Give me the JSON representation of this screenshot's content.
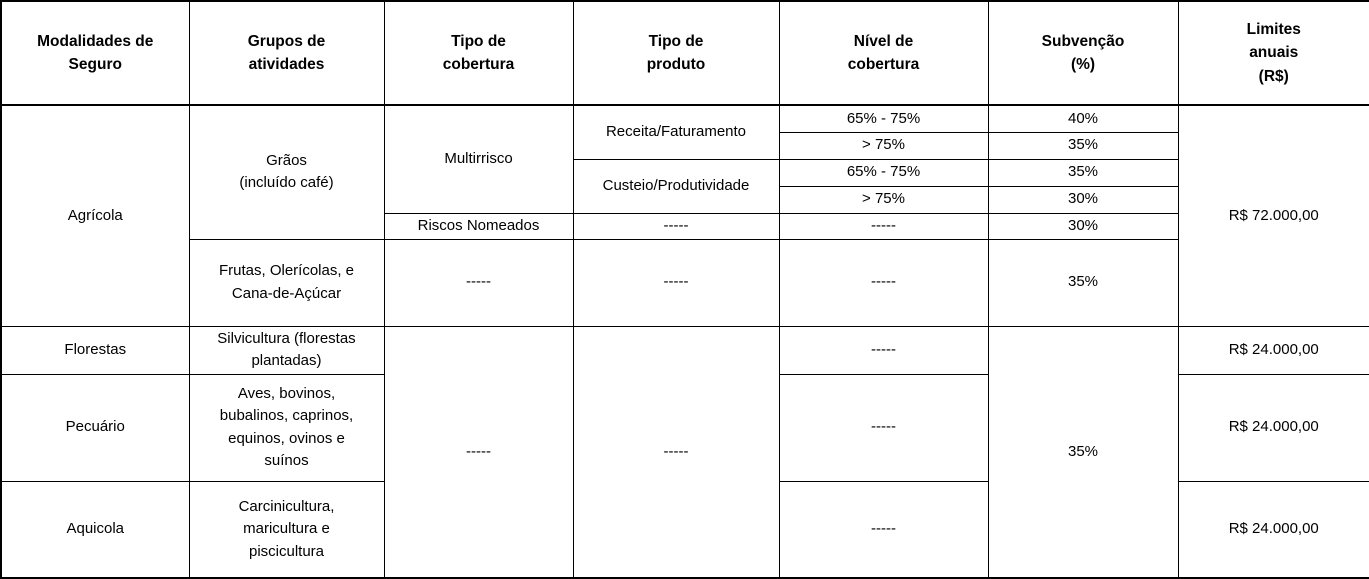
{
  "colors": {
    "border": "#000000",
    "background": "#ffffff",
    "text": "#000000"
  },
  "table": {
    "header": {
      "columns": [
        {
          "label": "Modalidades de\nSeguro"
        },
        {
          "label": "Grupos de\natividades"
        },
        {
          "label": "Tipo de\ncobertura"
        },
        {
          "label": "Tipo de\nproduto"
        },
        {
          "label": "Nível de\ncobertura"
        },
        {
          "label": "Subvenção\n(%)"
        },
        {
          "label": "Limites\nanuais\n(R$)"
        }
      ]
    },
    "body": {
      "rows": [
        {
          "cells": [
            {
              "text": "Agrícola"
            },
            {
              "text": "Grãos\n(incluído café)"
            },
            {
              "text": "Multirrisco"
            },
            {
              "text": "Receita/Faturamento"
            },
            {
              "text": "65% - 75%"
            },
            {
              "text": "40%"
            },
            {
              "text": "R$ 72.000,00"
            }
          ]
        },
        {
          "cells": [
            {
              "text": "> 75%"
            },
            {
              "text": "35%"
            }
          ]
        },
        {
          "cells": [
            {
              "text": "Custeio/Produtividade"
            },
            {
              "text": "65% - 75%"
            },
            {
              "text": "35%"
            }
          ]
        },
        {
          "cells": [
            {
              "text": "> 75%"
            },
            {
              "text": "30%"
            }
          ]
        },
        {
          "cells": [
            {
              "text": "Riscos Nomeados"
            },
            {
              "text": "-----"
            },
            {
              "text": "-----"
            },
            {
              "text": "30%"
            }
          ]
        },
        {
          "cells": [
            {
              "text": "Frutas, Olerícolas, e\nCana-de-Açúcar"
            },
            {
              "text": "-----"
            },
            {
              "text": "-----"
            },
            {
              "text": "-----"
            },
            {
              "text": "35%"
            }
          ]
        },
        {
          "cells": [
            {
              "text": "Florestas"
            },
            {
              "text": "Silvicultura (florestas\nplantadas)"
            },
            {
              "text": "-----"
            },
            {
              "text": "-----"
            },
            {
              "text": "-----"
            },
            {
              "text": "35%"
            },
            {
              "text": "R$ 24.000,00"
            }
          ]
        },
        {
          "cells": [
            {
              "text": "Pecuário"
            },
            {
              "text": "Aves, bovinos,\nbubalinos, caprinos,\nequinos, ovinos e\nsuínos"
            },
            {
              "text": "-----"
            },
            {
              "text": "R$ 24.000,00"
            }
          ]
        },
        {
          "cells": [
            {
              "text": "Aquicola"
            },
            {
              "text": "Carcinicultura,\nmaricultura e\npiscicultura"
            },
            {
              "text": "-----"
            },
            {
              "text": "R$ 24.000,00"
            }
          ]
        }
      ]
    }
  }
}
